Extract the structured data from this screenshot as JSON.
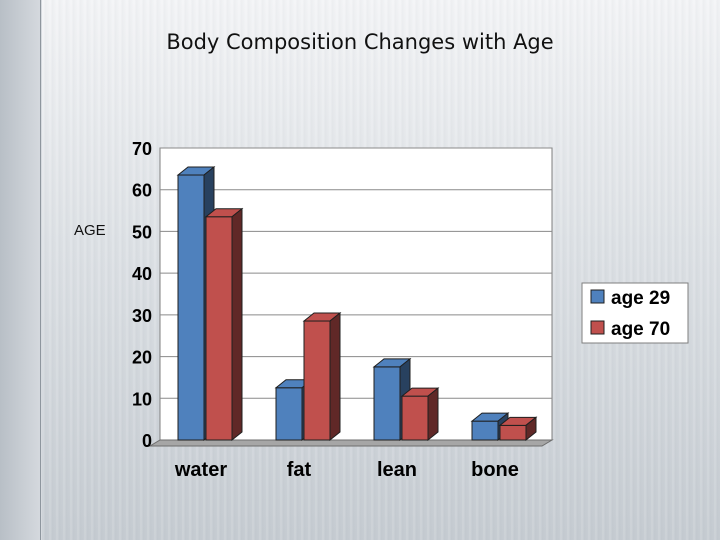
{
  "slide": {
    "title": "Body Composition Changes with Age",
    "side_label": "AGE"
  },
  "chart_data": {
    "type": "bar",
    "title": "Body Composition Changes with Age",
    "xlabel": "",
    "ylabel": "AGE",
    "categories": [
      "water",
      "fat",
      "lean",
      "bone"
    ],
    "series": [
      {
        "name": "age 29",
        "values": [
          64,
          13,
          18,
          5
        ],
        "color": "#4f81bd"
      },
      {
        "name": "age 70",
        "values": [
          54,
          29,
          11,
          4
        ],
        "color": "#c0504d"
      }
    ],
    "ylim": [
      0,
      70
    ],
    "yticks": [
      0,
      10,
      20,
      30,
      40,
      50,
      60,
      70
    ],
    "grid": true,
    "legend_position": "right",
    "style": "3d-clustered-column"
  }
}
